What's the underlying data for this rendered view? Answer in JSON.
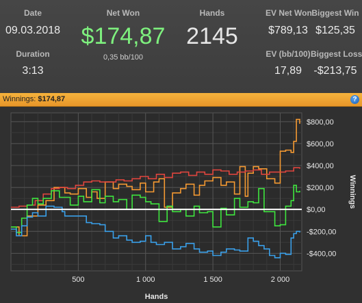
{
  "summary": {
    "date_label": "Date",
    "date_value": "09.03.2018",
    "duration_label": "Duration",
    "duration_value": "3:13",
    "net_won_label": "Net Won",
    "net_won_value": "$174,87",
    "bb_per_100": "0,35 bb/100",
    "hands_label": "Hands",
    "hands_value": "2145",
    "ev_net_won_label": "EV Net Won",
    "ev_net_won_value": "$789,13",
    "biggest_win_label": "Biggest Win",
    "biggest_win_value": "$125,35",
    "ev_bb_label": "EV (bb/100)",
    "ev_bb_value": "17,89",
    "biggest_loss_label": "Biggest Loss",
    "biggest_loss_value": "-$213,75"
  },
  "winnings_bar": {
    "label": "Winnings:",
    "value": "$174,87",
    "help_icon": "help-icon"
  },
  "colors": {
    "net_won_green": "#7ef07e",
    "bar_orange": "#f0a636",
    "series_orange": "#f59a32",
    "series_red": "#e0453e",
    "series_green": "#3fe63f",
    "series_blue": "#3aa0ea",
    "zero_line": "#ffffff"
  },
  "chart_data": {
    "type": "line",
    "xlabel": "Hands",
    "ylabel": "Winnings",
    "xlim": [
      0,
      2160
    ],
    "ylim": [
      -560,
      880
    ],
    "x_ticks": [
      500,
      1000,
      1500,
      2000
    ],
    "x_tick_labels": [
      "500",
      "1 000",
      "1 500",
      "2 000"
    ],
    "y_ticks": [
      800,
      600,
      400,
      200,
      0,
      -200,
      -400
    ],
    "y_tick_labels": [
      "$800,00",
      "$600,00",
      "$400,00",
      "$200,00",
      "$0,00",
      "-$200,00",
      "-$400,00"
    ],
    "grid": true,
    "series": [
      {
        "color": "orange",
        "x": [
          0,
          60,
          120,
          200,
          260,
          320,
          400,
          440,
          500,
          560,
          600,
          640,
          700,
          760,
          800,
          860,
          900,
          960,
          1000,
          1060,
          1100,
          1140,
          1200,
          1260,
          1300,
          1360,
          1400,
          1440,
          1500,
          1560,
          1600,
          1660,
          1700,
          1740,
          1760,
          1800,
          1840,
          1900,
          1960,
          2000,
          2040,
          2080,
          2100,
          2120,
          2145
        ],
        "y": [
          -160,
          -240,
          -60,
          40,
          80,
          200,
          150,
          140,
          190,
          110,
          160,
          100,
          250,
          190,
          230,
          210,
          180,
          240,
          160,
          250,
          280,
          20,
          150,
          190,
          230,
          130,
          220,
          260,
          290,
          220,
          250,
          140,
          390,
          120,
          330,
          390,
          370,
          280,
          240,
          530,
          540,
          520,
          620,
          820,
          780
        ]
      },
      {
        "color": "red",
        "x": [
          0,
          60,
          120,
          180,
          240,
          300,
          360,
          420,
          480,
          540,
          600,
          660,
          720,
          780,
          840,
          900,
          960,
          1020,
          1080,
          1140,
          1200,
          1260,
          1320,
          1380,
          1440,
          1500,
          1560,
          1620,
          1680,
          1740,
          1800,
          1860,
          1920,
          1980,
          2040,
          2100,
          2145
        ],
        "y": [
          20,
          30,
          40,
          80,
          140,
          190,
          200,
          190,
          220,
          250,
          260,
          250,
          250,
          270,
          260,
          280,
          300,
          280,
          320,
          290,
          330,
          340,
          310,
          340,
          320,
          360,
          350,
          320,
          340,
          350,
          360,
          320,
          340,
          340,
          350,
          380,
          370
        ]
      },
      {
        "color": "green",
        "x": [
          0,
          40,
          80,
          120,
          160,
          200,
          240,
          300,
          360,
          400,
          440,
          500,
          540,
          600,
          660,
          700,
          760,
          800,
          860,
          900,
          960,
          1000,
          1040,
          1100,
          1160,
          1200,
          1260,
          1300,
          1360,
          1400,
          1460,
          1500,
          1560,
          1600,
          1660,
          1700,
          1760,
          1800,
          1840,
          1880,
          1920,
          1960,
          2000,
          2040,
          2080,
          2100,
          2120,
          2145
        ],
        "y": [
          -160,
          -210,
          -80,
          40,
          100,
          50,
          100,
          170,
          110,
          110,
          40,
          120,
          70,
          180,
          60,
          120,
          70,
          90,
          0,
          130,
          110,
          70,
          50,
          -110,
          30,
          -20,
          0,
          -60,
          30,
          -30,
          -20,
          -160,
          10,
          -50,
          100,
          20,
          70,
          60,
          190,
          -20,
          -20,
          -150,
          -140,
          30,
          80,
          220,
          160,
          170
        ]
      },
      {
        "color": "blue",
        "x": [
          0,
          40,
          80,
          120,
          160,
          200,
          260,
          320,
          380,
          400,
          460,
          520,
          560,
          600,
          660,
          700,
          760,
          800,
          860,
          900,
          960,
          1000,
          1040,
          1080,
          1140,
          1200,
          1260,
          1300,
          1360,
          1400,
          1460,
          1500,
          1560,
          1600,
          1660,
          1700,
          1760,
          1800,
          1840,
          1880,
          1920,
          1960,
          2000,
          2040,
          2080,
          2100,
          2120,
          2145
        ],
        "y": [
          -180,
          -240,
          -150,
          -70,
          -30,
          -60,
          30,
          20,
          -20,
          -60,
          -60,
          -60,
          -120,
          -130,
          -140,
          -200,
          -260,
          -240,
          -280,
          -300,
          -290,
          -240,
          -300,
          -320,
          -300,
          -360,
          -340,
          -310,
          -360,
          -390,
          -380,
          -420,
          -390,
          -360,
          -370,
          -380,
          -260,
          -290,
          -330,
          -360,
          -420,
          -440,
          -400,
          -410,
          -260,
          -220,
          -200,
          -210
        ]
      }
    ]
  }
}
